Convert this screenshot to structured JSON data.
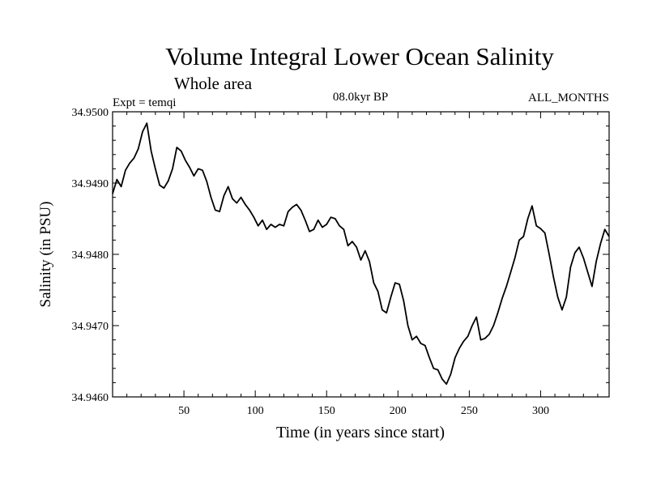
{
  "chart_data": {
    "type": "line",
    "title": "Volume Integral Lower Ocean Salinity",
    "subtitle": "Whole area",
    "left_label": "Expt = temqi",
    "center_label": "08.0kyr BP",
    "right_label": "ALL_MONTHS",
    "xlabel": "Time (in years since start)",
    "ylabel": "Salinity (in PSU)",
    "xlim": [
      0,
      348
    ],
    "ylim": [
      34.946,
      34.95
    ],
    "x_ticks": [
      50,
      100,
      150,
      200,
      250,
      300
    ],
    "y_ticks": [
      34.946,
      34.947,
      34.948,
      34.949,
      34.95
    ],
    "y_tick_labels": [
      "34.9460",
      "34.9470",
      "34.9480",
      "34.9490",
      "34.9500"
    ],
    "series": [
      {
        "name": "salinity",
        "x": [
          0,
          3,
          6,
          9,
          12,
          15,
          18,
          21,
          24,
          27,
          30,
          33,
          36,
          39,
          42,
          45,
          48,
          51,
          54,
          57,
          60,
          63,
          66,
          69,
          72,
          75,
          78,
          81,
          84,
          87,
          90,
          93,
          96,
          99,
          102,
          105,
          108,
          111,
          114,
          117,
          120,
          123,
          126,
          129,
          132,
          135,
          138,
          141,
          144,
          147,
          150,
          153,
          156,
          159,
          162,
          165,
          168,
          171,
          174,
          177,
          180,
          183,
          186,
          189,
          192,
          195,
          198,
          201,
          204,
          207,
          210,
          213,
          216,
          219,
          222,
          225,
          228,
          231,
          234,
          237,
          240,
          243,
          246,
          249,
          252,
          255,
          258,
          261,
          264,
          267,
          270,
          273,
          276,
          279,
          282,
          285,
          288,
          291,
          294,
          297,
          300,
          303,
          306,
          309,
          312,
          315,
          318,
          321,
          324,
          327,
          330,
          333,
          336,
          339,
          342,
          345,
          348
        ],
        "values": [
          34.94885,
          34.94905,
          34.94895,
          34.94918,
          34.94928,
          34.94935,
          34.94948,
          34.94972,
          34.94984,
          34.94945,
          34.9492,
          34.94897,
          34.94893,
          34.94903,
          34.9492,
          34.9495,
          34.94945,
          34.94932,
          34.94922,
          34.9491,
          34.9492,
          34.94918,
          34.94902,
          34.9488,
          34.94862,
          34.9486,
          34.94882,
          34.94895,
          34.94878,
          34.94872,
          34.9488,
          34.9487,
          34.94862,
          34.94852,
          34.9484,
          34.94848,
          34.94835,
          34.94842,
          34.94838,
          34.94842,
          34.9484,
          34.9486,
          34.94866,
          34.9487,
          34.94862,
          34.94848,
          34.94832,
          34.94835,
          34.94848,
          34.94838,
          34.94842,
          34.94852,
          34.9485,
          34.9484,
          34.94835,
          34.94812,
          34.94818,
          34.9481,
          34.94792,
          34.94805,
          34.9479,
          34.9476,
          34.94748,
          34.94722,
          34.94718,
          34.9474,
          34.9476,
          34.94758,
          34.94735,
          34.947,
          34.9468,
          34.94685,
          34.94675,
          34.94672,
          34.94655,
          34.9464,
          34.94638,
          34.94625,
          34.94618,
          34.94632,
          34.94655,
          34.94668,
          34.94678,
          34.94685,
          34.947,
          34.94712,
          34.9468,
          34.94682,
          34.94688,
          34.947,
          34.94718,
          34.94738,
          34.94755,
          34.94775,
          34.94795,
          34.9482,
          34.94825,
          34.9485,
          34.94868,
          34.9484,
          34.94836,
          34.9483,
          34.948,
          34.94768,
          34.9474,
          34.94722,
          34.9474,
          34.94782,
          34.94802,
          34.9481,
          34.94795,
          34.94775,
          34.94755,
          34.9479,
          34.94815,
          34.94835,
          34.94825
        ]
      }
    ]
  }
}
